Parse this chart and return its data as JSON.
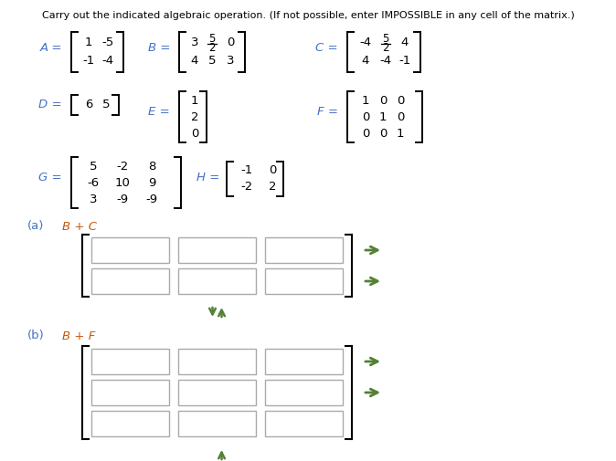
{
  "title": "Carry out the indicated algebraic operation. (If not possible, enter IMPOSSIBLE in any cell of the matrix.)",
  "bg_color": "#ffffff",
  "label_blue": "#4472c4",
  "label_orange": "#c55a11",
  "black": "#000000",
  "green": "#538135",
  "A_rows": [
    [
      "1",
      "-5"
    ],
    [
      "-1",
      "-4"
    ]
  ],
  "B_rows": [
    [
      "3",
      "5/2",
      "0"
    ],
    [
      "4",
      "5",
      "3"
    ]
  ],
  "C_rows": [
    [
      "-4",
      "5/2",
      "4"
    ],
    [
      "4",
      "-4",
      "-1"
    ]
  ],
  "D_rows": [
    [
      "6",
      "5"
    ]
  ],
  "E_rows": [
    [
      "1"
    ],
    [
      "2"
    ],
    [
      "0"
    ]
  ],
  "F_rows": [
    [
      "1",
      "0",
      "0"
    ],
    [
      "0",
      "1",
      "0"
    ],
    [
      "0",
      "0",
      "1"
    ]
  ],
  "G_rows": [
    [
      "5",
      "-2",
      "8"
    ],
    [
      "-6",
      "10",
      "9"
    ],
    [
      "3",
      "-9",
      "-9"
    ]
  ],
  "H_rows": [
    [
      "-1",
      "0"
    ],
    [
      "-2",
      "2"
    ]
  ]
}
